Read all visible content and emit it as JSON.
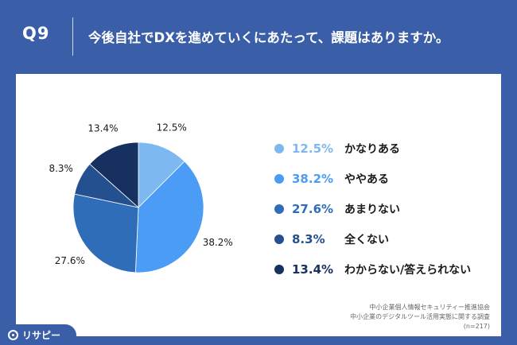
{
  "header": {
    "qnum": "Q9",
    "question": "今後自社でDXを進めていくにあたって、課題はありますか。"
  },
  "chart_data": {
    "type": "pie",
    "values": [
      12.5,
      38.2,
      27.6,
      8.3,
      13.4
    ],
    "labels": [
      "12.5%",
      "38.2%",
      "27.6%",
      "8.3%",
      "13.4%"
    ],
    "colors": [
      "#7db8f0",
      "#4a9cf5",
      "#2f6db8",
      "#24508f",
      "#16305f"
    ]
  },
  "legend": [
    {
      "pct": "12.5%",
      "label": "かなりある",
      "color": "#7db8f0"
    },
    {
      "pct": "38.2%",
      "label": "ややある",
      "color": "#4a9cf5"
    },
    {
      "pct": "27.6%",
      "label": "あまりない",
      "color": "#2f6db8"
    },
    {
      "pct": "8.3%",
      "label": "全くない",
      "color": "#24508f"
    },
    {
      "pct": "13.4%",
      "label": "わからない/答えられない",
      "color": "#16305f"
    }
  ],
  "source": {
    "line1": "中小企業個人情報セキュリティー推進協会",
    "line2": "中小企業のデジタルツール活用実態に関する調査",
    "line3": "(n=217)"
  },
  "logo": {
    "text": "リサピー",
    "icon": "risapi-logo-icon"
  }
}
